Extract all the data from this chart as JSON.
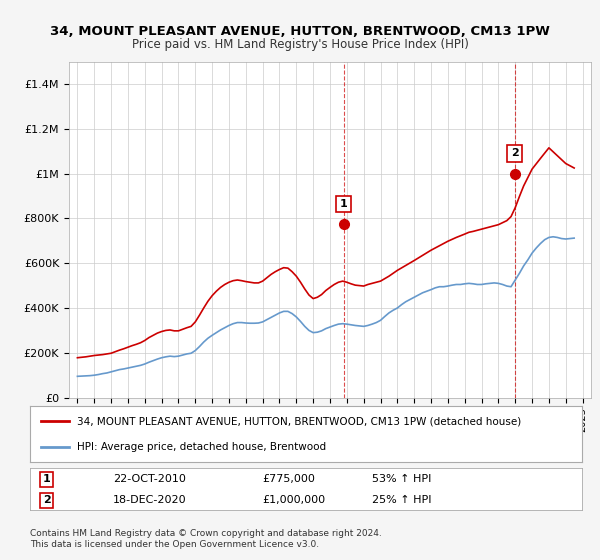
{
  "title": "34, MOUNT PLEASANT AVENUE, HUTTON, BRENTWOOD, CM13 1PW",
  "subtitle": "Price paid vs. HM Land Registry's House Price Index (HPI)",
  "ylabel": "",
  "ylim": [
    0,
    1500000
  ],
  "yticks": [
    0,
    200000,
    400000,
    600000,
    800000,
    1000000,
    1200000,
    1400000
  ],
  "ytick_labels": [
    "£0",
    "£200K",
    "£400K",
    "£600K",
    "£800K",
    "£1M",
    "£1.2M",
    "£1.4M"
  ],
  "xlim_start": 1994.5,
  "xlim_end": 2025.5,
  "xticks": [
    1995,
    1996,
    1997,
    1998,
    1999,
    2000,
    2001,
    2002,
    2003,
    2004,
    2005,
    2006,
    2007,
    2008,
    2009,
    2010,
    2011,
    2012,
    2013,
    2014,
    2015,
    2016,
    2017,
    2018,
    2019,
    2020,
    2021,
    2022,
    2023,
    2024,
    2025
  ],
  "bg_color": "#f5f5f5",
  "plot_bg_color": "#ffffff",
  "grid_color": "#cccccc",
  "red_color": "#cc0000",
  "blue_color": "#6699cc",
  "marker1_x": 2010.81,
  "marker1_y": 775000,
  "marker1_label": "1",
  "marker1_date": "22-OCT-2010",
  "marker1_price": "£775,000",
  "marker1_hpi": "53% ↑ HPI",
  "marker2_x": 2020.96,
  "marker2_y": 1000000,
  "marker2_label": "2",
  "marker2_date": "18-DEC-2020",
  "marker2_price": "£1,000,000",
  "marker2_hpi": "25% ↑ HPI",
  "legend_line1": "34, MOUNT PLEASANT AVENUE, HUTTON, BRENTWOOD, CM13 1PW (detached house)",
  "legend_line2": "HPI: Average price, detached house, Brentwood",
  "footnote": "Contains HM Land Registry data © Crown copyright and database right 2024.\nThis data is licensed under the Open Government Licence v3.0.",
  "hpi_data_x": [
    1995.0,
    1995.25,
    1995.5,
    1995.75,
    1996.0,
    1996.25,
    1996.5,
    1996.75,
    1997.0,
    1997.25,
    1997.5,
    1997.75,
    1998.0,
    1998.25,
    1998.5,
    1998.75,
    1999.0,
    1999.25,
    1999.5,
    1999.75,
    2000.0,
    2000.25,
    2000.5,
    2000.75,
    2001.0,
    2001.25,
    2001.5,
    2001.75,
    2002.0,
    2002.25,
    2002.5,
    2002.75,
    2003.0,
    2003.25,
    2003.5,
    2003.75,
    2004.0,
    2004.25,
    2004.5,
    2004.75,
    2005.0,
    2005.25,
    2005.5,
    2005.75,
    2006.0,
    2006.25,
    2006.5,
    2006.75,
    2007.0,
    2007.25,
    2007.5,
    2007.75,
    2008.0,
    2008.25,
    2008.5,
    2008.75,
    2009.0,
    2009.25,
    2009.5,
    2009.75,
    2010.0,
    2010.25,
    2010.5,
    2010.75,
    2011.0,
    2011.25,
    2011.5,
    2011.75,
    2012.0,
    2012.25,
    2012.5,
    2012.75,
    2013.0,
    2013.25,
    2013.5,
    2013.75,
    2014.0,
    2014.25,
    2014.5,
    2014.75,
    2015.0,
    2015.25,
    2015.5,
    2015.75,
    2016.0,
    2016.25,
    2016.5,
    2016.75,
    2017.0,
    2017.25,
    2017.5,
    2017.75,
    2018.0,
    2018.25,
    2018.5,
    2018.75,
    2019.0,
    2019.25,
    2019.5,
    2019.75,
    2020.0,
    2020.25,
    2020.5,
    2020.75,
    2021.0,
    2021.25,
    2021.5,
    2021.75,
    2022.0,
    2022.25,
    2022.5,
    2022.75,
    2023.0,
    2023.25,
    2023.5,
    2023.75,
    2024.0,
    2024.25,
    2024.5
  ],
  "hpi_data_y": [
    95000,
    96000,
    97000,
    98000,
    100000,
    103000,
    107000,
    110000,
    115000,
    120000,
    125000,
    128000,
    132000,
    136000,
    140000,
    144000,
    150000,
    158000,
    165000,
    172000,
    178000,
    182000,
    185000,
    183000,
    185000,
    190000,
    195000,
    198000,
    210000,
    228000,
    248000,
    265000,
    278000,
    290000,
    302000,
    312000,
    322000,
    330000,
    335000,
    335000,
    333000,
    332000,
    332000,
    333000,
    338000,
    348000,
    358000,
    368000,
    378000,
    385000,
    385000,
    375000,
    360000,
    340000,
    318000,
    300000,
    290000,
    292000,
    298000,
    308000,
    315000,
    322000,
    328000,
    330000,
    328000,
    325000,
    322000,
    320000,
    318000,
    322000,
    328000,
    335000,
    345000,
    362000,
    378000,
    390000,
    400000,
    415000,
    428000,
    438000,
    448000,
    458000,
    468000,
    475000,
    482000,
    490000,
    495000,
    495000,
    498000,
    502000,
    505000,
    505000,
    508000,
    510000,
    508000,
    505000,
    505000,
    508000,
    510000,
    512000,
    510000,
    505000,
    498000,
    495000,
    525000,
    555000,
    588000,
    615000,
    645000,
    668000,
    688000,
    705000,
    715000,
    718000,
    715000,
    710000,
    708000,
    710000,
    712000
  ],
  "red_data_x": [
    1995.0,
    1995.5,
    1996.0,
    1996.5,
    1997.0,
    1997.25,
    1997.5,
    1997.75,
    1998.0,
    1998.25,
    1998.5,
    1998.75,
    1999.0,
    1999.25,
    1999.5,
    1999.75,
    2000.0,
    2000.25,
    2000.5,
    2000.75,
    2001.0,
    2001.25,
    2001.5,
    2001.75,
    2002.0,
    2002.25,
    2002.5,
    2002.75,
    2003.0,
    2003.25,
    2003.5,
    2003.75,
    2004.0,
    2004.25,
    2004.5,
    2004.75,
    2005.0,
    2005.25,
    2005.5,
    2005.75,
    2006.0,
    2006.25,
    2006.5,
    2006.75,
    2007.0,
    2007.25,
    2007.5,
    2007.75,
    2008.0,
    2008.25,
    2008.5,
    2008.75,
    2009.0,
    2009.25,
    2009.5,
    2009.75,
    2010.0,
    2010.25,
    2010.5,
    2010.75,
    2011.0,
    2011.25,
    2011.5,
    2012.0,
    2012.25,
    2013.0,
    2013.5,
    2014.0,
    2014.5,
    2015.0,
    2015.5,
    2016.0,
    2016.5,
    2017.0,
    2017.5,
    2018.0,
    2018.25,
    2018.5,
    2019.0,
    2019.5,
    2020.0,
    2020.5,
    2020.75,
    2021.0,
    2021.25,
    2021.5,
    2022.0,
    2022.5,
    2023.0,
    2023.5,
    2024.0,
    2024.5
  ],
  "red_data_y": [
    178000,
    182000,
    188000,
    192000,
    198000,
    205000,
    212000,
    218000,
    225000,
    232000,
    238000,
    245000,
    255000,
    268000,
    278000,
    288000,
    295000,
    300000,
    302000,
    298000,
    298000,
    305000,
    312000,
    318000,
    338000,
    368000,
    400000,
    430000,
    455000,
    475000,
    492000,
    505000,
    515000,
    522000,
    525000,
    522000,
    518000,
    515000,
    512000,
    512000,
    520000,
    535000,
    550000,
    562000,
    572000,
    580000,
    578000,
    562000,
    542000,
    515000,
    485000,
    458000,
    442000,
    448000,
    460000,
    478000,
    492000,
    505000,
    515000,
    520000,
    515000,
    508000,
    502000,
    498000,
    505000,
    520000,
    542000,
    568000,
    590000,
    612000,
    635000,
    658000,
    678000,
    698000,
    715000,
    730000,
    738000,
    742000,
    752000,
    762000,
    772000,
    790000,
    808000,
    848000,
    898000,
    945000,
    1020000,
    1068000,
    1115000,
    1080000,
    1045000,
    1025000
  ]
}
